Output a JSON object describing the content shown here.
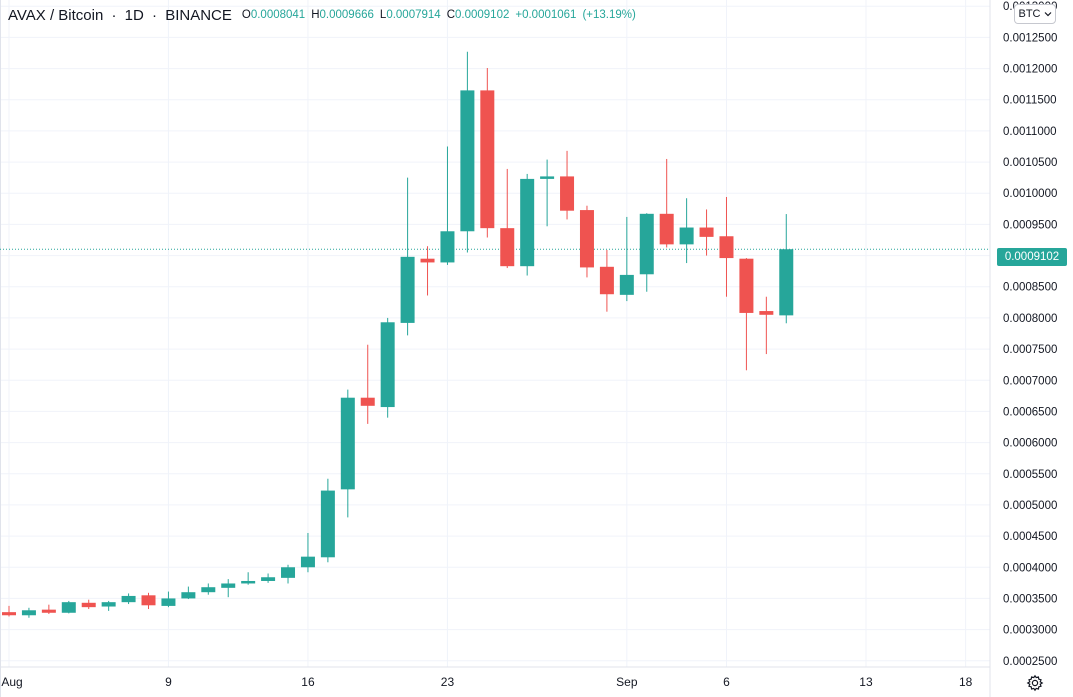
{
  "legend": {
    "symbol": "AVAX / Bitcoin",
    "interval": "1D",
    "exchange": "BINANCE",
    "open_key": "O",
    "open": "0.0008041",
    "high_key": "H",
    "high": "0.0009666",
    "low_key": "L",
    "low": "0.0007914",
    "close_key": "C",
    "close": "0.0009102",
    "change": "+0.0001061",
    "change_pct": "(+13.19%)"
  },
  "currency_button": {
    "label": "BTC",
    "icon": "chevron-down-icon"
  },
  "settings_button": {
    "icon": "gear-icon"
  },
  "last_price_label": "0.0009102",
  "colors": {
    "up": "#26a69a",
    "down": "#ef5350",
    "grid": "#f0f3fa",
    "text": "#131722"
  },
  "chart_data": {
    "type": "candlestick",
    "title": "AVAX / Bitcoin",
    "interval": "1D",
    "exchange": "BINANCE",
    "y_axis": {
      "position": "right",
      "range": [
        0.00024,
        0.00131
      ],
      "ticks": [
        "0.0002500",
        "0.0003000",
        "0.0003500",
        "0.0004000",
        "0.0004500",
        "0.0005000",
        "0.0005500",
        "0.0006000",
        "0.0006500",
        "0.0007000",
        "0.0007500",
        "0.0008000",
        "0.0008500",
        "0.0009000",
        "0.0009500",
        "0.0010000",
        "0.0010500",
        "0.0011000",
        "0.0011500",
        "0.0012000",
        "0.0012500",
        "0.0013000"
      ]
    },
    "x_axis": {
      "range_days": [
        0,
        50
      ],
      "ticks": [
        {
          "day": 0,
          "label": "Aug"
        },
        {
          "day": 8,
          "label": "9"
        },
        {
          "day": 15,
          "label": "16"
        },
        {
          "day": 22,
          "label": "23"
        },
        {
          "day": 31,
          "label": "Sep"
        },
        {
          "day": 36,
          "label": "6"
        },
        {
          "day": 43,
          "label": "13"
        },
        {
          "day": 48,
          "label": "18"
        }
      ]
    },
    "grid": true,
    "last_price": 0.0009102,
    "candles": [
      {
        "day": 0,
        "open": 0.000328,
        "high": 0.000338,
        "low": 0.000321,
        "close": 0.000323
      },
      {
        "day": 1,
        "open": 0.000323,
        "high": 0.000335,
        "low": 0.000319,
        "close": 0.000331
      },
      {
        "day": 2,
        "open": 0.000332,
        "high": 0.00034,
        "low": 0.000325,
        "close": 0.000327
      },
      {
        "day": 3,
        "open": 0.000327,
        "high": 0.000346,
        "low": 0.000326,
        "close": 0.000344
      },
      {
        "day": 4,
        "open": 0.000343,
        "high": 0.000348,
        "low": 0.000333,
        "close": 0.000336
      },
      {
        "day": 5,
        "open": 0.000337,
        "high": 0.000346,
        "low": 0.00033,
        "close": 0.000344
      },
      {
        "day": 6,
        "open": 0.000344,
        "high": 0.000358,
        "low": 0.000341,
        "close": 0.000354
      },
      {
        "day": 7,
        "open": 0.000355,
        "high": 0.000359,
        "low": 0.000333,
        "close": 0.000339
      },
      {
        "day": 8,
        "open": 0.000338,
        "high": 0.000361,
        "low": 0.000336,
        "close": 0.00035
      },
      {
        "day": 9,
        "open": 0.00035,
        "high": 0.000369,
        "low": 0.000349,
        "close": 0.00036
      },
      {
        "day": 10,
        "open": 0.00036,
        "high": 0.000374,
        "low": 0.000356,
        "close": 0.000368
      },
      {
        "day": 11,
        "open": 0.000367,
        "high": 0.000381,
        "low": 0.000352,
        "close": 0.000374
      },
      {
        "day": 12,
        "open": 0.000374,
        "high": 0.000392,
        "low": 0.000372,
        "close": 0.000378
      },
      {
        "day": 13,
        "open": 0.000378,
        "high": 0.00039,
        "low": 0.000375,
        "close": 0.000384
      },
      {
        "day": 14,
        "open": 0.000383,
        "high": 0.000404,
        "low": 0.000374,
        "close": 0.0004
      },
      {
        "day": 15,
        "open": 0.0004,
        "high": 0.000455,
        "low": 0.000392,
        "close": 0.000417
      },
      {
        "day": 16,
        "open": 0.000416,
        "high": 0.000542,
        "low": 0.000408,
        "close": 0.000523
      },
      {
        "day": 17,
        "open": 0.000525,
        "high": 0.000685,
        "low": 0.00048,
        "close": 0.000672
      },
      {
        "day": 18,
        "open": 0.000672,
        "high": 0.000757,
        "low": 0.00063,
        "close": 0.000659
      },
      {
        "day": 19,
        "open": 0.000657,
        "high": 0.0008,
        "low": 0.00064,
        "close": 0.000793
      },
      {
        "day": 20,
        "open": 0.000792,
        "high": 0.001025,
        "low": 0.000772,
        "close": 0.000898
      },
      {
        "day": 21,
        "open": 0.000895,
        "high": 0.000915,
        "low": 0.000836,
        "close": 0.000889
      },
      {
        "day": 22,
        "open": 0.000889,
        "high": 0.001075,
        "low": 0.000885,
        "close": 0.000939
      },
      {
        "day": 23,
        "open": 0.000939,
        "high": 0.001227,
        "low": 0.000905,
        "close": 0.001165
      },
      {
        "day": 24,
        "open": 0.001165,
        "high": 0.001201,
        "low": 0.000929,
        "close": 0.000944
      },
      {
        "day": 25,
        "open": 0.000944,
        "high": 0.001039,
        "low": 0.00088,
        "close": 0.000883
      },
      {
        "day": 26,
        "open": 0.000883,
        "high": 0.001031,
        "low": 0.000868,
        "close": 0.001023
      },
      {
        "day": 27,
        "open": 0.001023,
        "high": 0.001054,
        "low": 0.000947,
        "close": 0.001027
      },
      {
        "day": 28,
        "open": 0.001027,
        "high": 0.001068,
        "low": 0.000958,
        "close": 0.000972
      },
      {
        "day": 29,
        "open": 0.000973,
        "high": 0.00098,
        "low": 0.000865,
        "close": 0.000881
      },
      {
        "day": 30,
        "open": 0.000882,
        "high": 0.000909,
        "low": 0.00081,
        "close": 0.000838
      },
      {
        "day": 31,
        "open": 0.000837,
        "high": 0.000962,
        "low": 0.000827,
        "close": 0.000869
      },
      {
        "day": 32,
        "open": 0.00087,
        "high": 0.000968,
        "low": 0.000842,
        "close": 0.000967
      },
      {
        "day": 33,
        "open": 0.000967,
        "high": 0.001055,
        "low": 0.000913,
        "close": 0.000918
      },
      {
        "day": 34,
        "open": 0.000918,
        "high": 0.000992,
        "low": 0.000888,
        "close": 0.000945
      },
      {
        "day": 35,
        "open": 0.000945,
        "high": 0.000974,
        "low": 0.0009,
        "close": 0.00093
      },
      {
        "day": 36,
        "open": 0.000931,
        "high": 0.000994,
        "low": 0.000834,
        "close": 0.000896
      },
      {
        "day": 37,
        "open": 0.000895,
        "high": 0.000896,
        "low": 0.000716,
        "close": 0.000808
      },
      {
        "day": 38,
        "open": 0.000811,
        "high": 0.000834,
        "low": 0.000742,
        "close": 0.000805
      },
      {
        "day": 39,
        "open": 0.0008041,
        "high": 0.0009666,
        "low": 0.0007914,
        "close": 0.0009102
      }
    ]
  }
}
